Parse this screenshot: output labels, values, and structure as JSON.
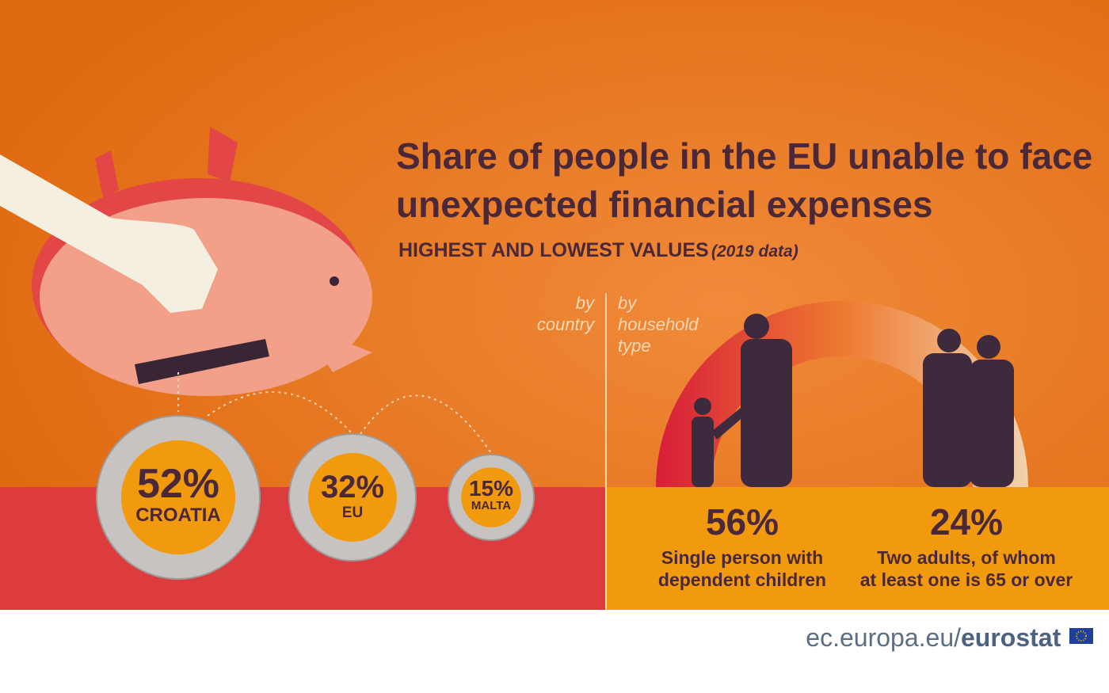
{
  "header": {
    "title_line1": "Share of people in the EU unable to face",
    "title_line2": "unexpected financial expenses",
    "subtitle": "HIGHEST AND LOWEST VALUES",
    "subtitle_note": "(2019 data)"
  },
  "by_country": {
    "heading_line1": "by",
    "heading_line2": "country",
    "items": [
      {
        "value_label": "52%",
        "label": "CROATIA"
      },
      {
        "value_label": "32%",
        "label": "EU"
      },
      {
        "value_label": "15%",
        "label": "MALTA"
      }
    ]
  },
  "by_household": {
    "heading_line1": "by",
    "heading_line2": "household",
    "heading_line3": "type",
    "items": [
      {
        "value_label": "56%",
        "label_line1": "Single person with",
        "label_line2": "dependent children"
      },
      {
        "value_label": "24%",
        "label_line1": "Two adults,  of whom",
        "label_line2": "at least one is 65 or over"
      }
    ]
  },
  "footer": {
    "site": "ec.europa.eu/",
    "brand": "eurostat"
  }
}
